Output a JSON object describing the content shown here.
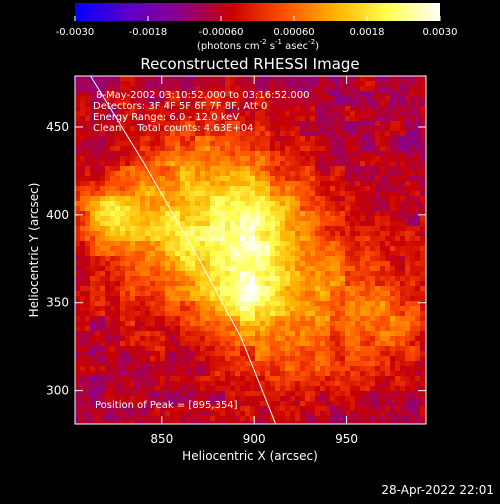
{
  "chart_data": {
    "type": "heatmap",
    "title": "Reconstructed RHESSI Image",
    "xlabel": "Heliocentric X (arcsec)",
    "ylabel": "Heliocentric Y (arcsec)",
    "xlim": [
      803,
      993
    ],
    "ylim": [
      281,
      479
    ],
    "xticks": [
      850,
      900,
      950
    ],
    "yticks": [
      300,
      350,
      400,
      450
    ],
    "colorbar": {
      "range": [
        -0.003,
        0.003
      ],
      "ticks": [
        "-0.0030",
        "-0.0018",
        "-0.00060",
        "0.00060",
        "0.0018",
        "0.0030"
      ],
      "unit_label": "(photons cm",
      "unit_exp1": "-2",
      "unit_mid": " s",
      "unit_exp2": "-1",
      "unit_mid2": " asec",
      "unit_exp3": "-2",
      "unit_end": ")",
      "colors": [
        "#0000ff",
        "#5a00c8",
        "#8b008b",
        "#c80000",
        "#ff5000",
        "#ffb400",
        "#ffff50",
        "#ffffff"
      ]
    },
    "info": {
      "line1": "8-May-2002 03:10:52.000 to 03:16:52.000",
      "line2": "Detectors: 3F 4F 5F 6F 7F 8F, Att 0",
      "line3": "Energy Range: 6.0 - 12.0 keV",
      "line4": "Clean     Total counts: 4.63E+04"
    },
    "peak_label": "Position of Peak = [895,354]",
    "peak": [
      895,
      354
    ],
    "source_blobs": [
      {
        "x": 880,
        "y": 385,
        "sx": 40,
        "sy": 32,
        "amp": 0.0022
      },
      {
        "x": 895,
        "y": 354,
        "sx": 12,
        "sy": 12,
        "amp": 0.0016
      },
      {
        "x": 900,
        "y": 395,
        "sx": 16,
        "sy": 20,
        "amp": 0.0012
      },
      {
        "x": 822,
        "y": 400,
        "sx": 10,
        "sy": 10,
        "amp": 0.0014
      },
      {
        "x": 845,
        "y": 405,
        "sx": 25,
        "sy": 22,
        "amp": 0.0008
      },
      {
        "x": 940,
        "y": 350,
        "sx": 35,
        "sy": 25,
        "amp": 0.001
      },
      {
        "x": 975,
        "y": 335,
        "sx": 15,
        "sy": 18,
        "amp": 0.0008
      },
      {
        "x": 915,
        "y": 315,
        "sx": 20,
        "sy": 18,
        "amp": 0.0009
      },
      {
        "x": 875,
        "y": 440,
        "sx": 22,
        "sy": 18,
        "amp": 0.0007
      }
    ],
    "limb_curve": [
      [
        805,
        490
      ],
      [
        840,
        430
      ],
      [
        870,
        375
      ],
      [
        893,
        330
      ],
      [
        912,
        280
      ]
    ],
    "timestamp": "28-Apr-2022 22:01"
  }
}
